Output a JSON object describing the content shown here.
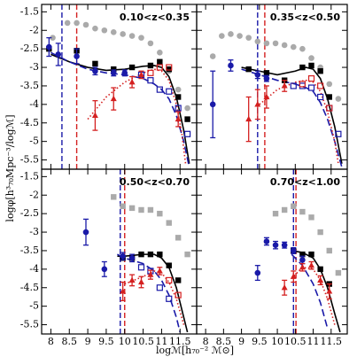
{
  "chart_data": [
    {
      "type": "scatter",
      "annotation": "0.10<z<0.35",
      "ylabel": "logφ[h³₇₀Mpc⁻³/logℳ]",
      "xlabel": "logℳ[h₇₀⁻² ℳ⊙]",
      "xlim": [
        7.75,
        11.95
      ],
      "ylim": [
        -5.75,
        -1.3
      ],
      "xticks": [
        8,
        8.5,
        9,
        9.5,
        10,
        10.5,
        11,
        11.5
      ],
      "yticks": [
        -1.5,
        -2,
        -2.5,
        -3,
        -3.5,
        -4,
        -4.5,
        -5,
        -5.5
      ],
      "series": [
        {
          "color": "#aaaaaa",
          "marker": "circle",
          "x": [
            8.05,
            8.45,
            8.7,
            8.95,
            9.2,
            9.45,
            9.7,
            9.95,
            10.2,
            10.45,
            10.7,
            10.95,
            11.2,
            11.45,
            11.7
          ],
          "values": [
            -2.2,
            -1.8,
            -1.8,
            -1.85,
            -1.95,
            -2.0,
            -2.05,
            -2.1,
            -2.15,
            -2.2,
            -2.35,
            -2.6,
            -3.1,
            -3.6,
            -4.1
          ]
        },
        {
          "color": "#000000",
          "marker": "square",
          "x": [
            7.95,
            8.7,
            9.2,
            9.7,
            10.2,
            10.7,
            10.95,
            11.2,
            11.45,
            11.7
          ],
          "values": [
            -2.5,
            -2.55,
            -2.9,
            -3.05,
            -3.0,
            -2.95,
            -2.85,
            -3.05,
            -3.8,
            -4.4
          ]
        },
        {
          "color": "#1a1aa8",
          "marker": "circle",
          "x": [
            7.95,
            8.2,
            8.7,
            9.2,
            9.7,
            10.0
          ],
          "values": [
            -2.45,
            -2.65,
            -2.7,
            -3.1,
            -3.15,
            -3.15
          ],
          "errors": [
            0.25,
            0.3,
            0.2,
            0.1,
            0.08,
            0.08
          ]
        },
        {
          "color": "#1a1aa8",
          "marker": "open-square",
          "x": [
            10.45,
            10.7,
            10.95,
            11.2,
            11.45,
            11.7
          ],
          "values": [
            -3.2,
            -3.35,
            -3.6,
            -3.65,
            -4.1,
            -4.8
          ]
        },
        {
          "color": "#d42020",
          "marker": "triangle",
          "x": [
            9.2,
            9.7,
            10.2,
            10.45,
            11.45
          ],
          "values": [
            -4.3,
            -3.85,
            -3.4,
            -3.2,
            -4.4
          ],
          "errors": [
            0.4,
            0.3,
            0.15,
            0.1,
            0.2
          ]
        },
        {
          "color": "#d42020",
          "marker": "open-square",
          "x": [
            10.7,
            10.95,
            11.2
          ],
          "values": [
            -3.15,
            -3.0,
            -3.0
          ]
        }
      ],
      "lines": [
        {
          "color": "#000000",
          "dash": "solid",
          "x": [
            8.0,
            8.5,
            9.0,
            9.5,
            10.0,
            10.5,
            10.8,
            11.0,
            11.2,
            11.4,
            11.6,
            11.75
          ],
          "values": [
            -2.65,
            -2.85,
            -3.0,
            -3.08,
            -3.05,
            -2.97,
            -2.95,
            -3.0,
            -3.25,
            -3.8,
            -4.7,
            -5.6
          ]
        },
        {
          "color": "#1a1aa8",
          "dash": "long",
          "x": [
            8.0,
            8.5,
            9.0,
            9.5,
            10.0,
            10.5,
            10.8,
            11.0,
            11.2,
            11.4,
            11.6,
            11.75
          ],
          "values": [
            -2.6,
            -2.85,
            -3.05,
            -3.15,
            -3.2,
            -3.3,
            -3.45,
            -3.6,
            -3.85,
            -4.3,
            -5.0,
            -5.7
          ]
        },
        {
          "color": "#d42020",
          "dash": "dot",
          "x": [
            9.0,
            9.5,
            10.0,
            10.5,
            10.8,
            11.0,
            11.2,
            11.4,
            11.55,
            11.65
          ],
          "values": [
            -4.4,
            -3.8,
            -3.4,
            -3.15,
            -3.05,
            -3.1,
            -3.35,
            -4.0,
            -4.8,
            -5.6
          ]
        }
      ],
      "vlines": [
        {
          "color": "#1a1aa8",
          "x": 8.3
        },
        {
          "color": "#d42020",
          "x": 8.7
        }
      ]
    },
    {
      "type": "scatter",
      "annotation": "0.35<z<0.50",
      "xlim": [
        7.75,
        11.95
      ],
      "ylim": [
        -5.75,
        -1.3
      ],
      "xticks": [
        8,
        8.5,
        9,
        9.5,
        10,
        10.5,
        11,
        11.5
      ],
      "yticks": [
        -1.5,
        -2,
        -2.5,
        -3,
        -3.5,
        -4,
        -4.5,
        -5,
        -5.5
      ],
      "series": [
        {
          "color": "#aaaaaa",
          "marker": "circle",
          "x": [
            8.2,
            8.45,
            8.7,
            8.95,
            9.2,
            9.45,
            9.7,
            9.95,
            10.2,
            10.45,
            10.7,
            10.95,
            11.2,
            11.45,
            11.7
          ],
          "values": [
            -2.7,
            -2.15,
            -2.1,
            -2.15,
            -2.2,
            -2.3,
            -2.35,
            -2.35,
            -2.4,
            -2.45,
            -2.5,
            -2.75,
            -3.0,
            -3.45,
            -3.85
          ]
        },
        {
          "color": "#000000",
          "marker": "square",
          "x": [
            9.2,
            9.7,
            10.2,
            10.7,
            10.95,
            11.2,
            11.45
          ],
          "values": [
            -3.05,
            -3.15,
            -3.35,
            -3.0,
            -2.95,
            -3.1,
            -3.8
          ]
        },
        {
          "color": "#1a1aa8",
          "marker": "circle",
          "x": [
            8.2,
            8.7,
            9.45,
            9.7
          ],
          "values": [
            -4.0,
            -2.95,
            -3.2,
            -3.3
          ],
          "errors": [
            0.9,
            0.15,
            0.1,
            0.08
          ]
        },
        {
          "color": "#1a1aa8",
          "marker": "open-square",
          "x": [
            10.45,
            10.7,
            10.95,
            11.2,
            11.45,
            11.7
          ],
          "values": [
            -3.5,
            -3.5,
            -3.55,
            -3.8,
            -4.1,
            -4.8
          ]
        },
        {
          "color": "#d42020",
          "marker": "triangle",
          "x": [
            9.2,
            9.45,
            9.7,
            10.2
          ],
          "values": [
            -4.4,
            -4.0,
            -3.8,
            -3.5
          ],
          "errors": [
            0.6,
            0.4,
            0.3,
            0.15
          ]
        },
        {
          "color": "#d42020",
          "marker": "open-square",
          "x": [
            10.7,
            10.95,
            11.2,
            11.45
          ],
          "values": [
            -3.45,
            -3.3,
            -3.5,
            -4.1
          ]
        }
      ],
      "lines": [
        {
          "color": "#000000",
          "dash": "solid",
          "x": [
            9.0,
            9.5,
            10.0,
            10.5,
            10.8,
            11.0,
            11.2,
            11.4,
            11.6,
            11.8
          ],
          "values": [
            -3.0,
            -3.1,
            -3.2,
            -3.1,
            -3.0,
            -3.05,
            -3.3,
            -3.85,
            -4.6,
            -5.6
          ]
        },
        {
          "color": "#1a1aa8",
          "dash": "long",
          "x": [
            9.0,
            9.5,
            10.0,
            10.5,
            10.8,
            11.0,
            11.2,
            11.4,
            11.6,
            11.8
          ],
          "values": [
            -3.05,
            -3.2,
            -3.35,
            -3.45,
            -3.55,
            -3.65,
            -3.95,
            -4.4,
            -5.0,
            -5.7
          ]
        },
        {
          "color": "#d42020",
          "dash": "dot",
          "x": [
            9.5,
            10.0,
            10.5,
            10.8,
            11.0,
            11.2,
            11.4,
            11.6,
            11.7
          ],
          "values": [
            -4.0,
            -3.6,
            -3.4,
            -3.35,
            -3.4,
            -3.65,
            -4.2,
            -5.0,
            -5.6
          ]
        }
      ],
      "vlines": [
        {
          "color": "#1a1aa8",
          "x": 9.45
        },
        {
          "color": "#d42020",
          "x": 9.65
        }
      ]
    },
    {
      "type": "scatter",
      "annotation": "0.50<z<0.70",
      "xlim": [
        7.75,
        11.95
      ],
      "ylim": [
        -5.75,
        -1.3
      ],
      "xticks": [
        8,
        8.5,
        9,
        9.5,
        10,
        10.5,
        11,
        11.5
      ],
      "yticks": [
        -1.5,
        -2,
        -2.5,
        -3,
        -3.5,
        -4,
        -4.5,
        -5,
        -5.5
      ],
      "series": [
        {
          "color": "#aaaaaa",
          "marker": "square",
          "x": [
            9.7,
            9.95,
            10.2,
            10.45,
            10.7,
            10.95,
            11.2,
            11.45,
            11.7
          ],
          "values": [
            -2.05,
            -2.3,
            -2.35,
            -2.4,
            -2.4,
            -2.5,
            -2.75,
            -3.15,
            -3.6
          ]
        },
        {
          "color": "#000000",
          "marker": "square",
          "x": [
            9.95,
            10.2,
            10.45,
            10.7,
            10.95,
            11.2,
            11.45
          ],
          "values": [
            -3.7,
            -3.7,
            -3.6,
            -3.6,
            -3.6,
            -3.9,
            -4.3
          ]
        },
        {
          "color": "#1a1aa8",
          "marker": "circle",
          "x": [
            8.95,
            9.45,
            9.95,
            10.2
          ],
          "values": [
            -3.0,
            -4.0,
            -3.65,
            -3.7
          ],
          "errors": [
            0.35,
            0.2,
            0.1,
            0.1
          ]
        },
        {
          "color": "#1a1aa8",
          "marker": "open-square",
          "x": [
            10.45,
            10.7,
            10.95,
            11.2
          ],
          "values": [
            -3.95,
            -4.05,
            -4.5,
            -4.8
          ]
        },
        {
          "color": "#d42020",
          "marker": "triangle",
          "x": [
            9.95,
            10.2,
            10.45,
            10.7,
            10.95
          ],
          "values": [
            -4.6,
            -4.3,
            -4.35,
            -4.15,
            -4.05
          ],
          "errors": [
            0.25,
            0.15,
            0.15,
            0.12,
            0.1
          ]
        },
        {
          "color": "#d42020",
          "marker": "open-square",
          "x": [
            11.2,
            11.45
          ],
          "values": [
            -4.3,
            -4.7
          ]
        }
      ],
      "lines": [
        {
          "color": "#000000",
          "dash": "solid",
          "x": [
            9.8,
            10.0,
            10.5,
            10.8,
            11.0,
            11.2,
            11.4,
            11.6,
            11.7
          ],
          "values": [
            -3.65,
            -3.65,
            -3.6,
            -3.6,
            -3.7,
            -3.95,
            -4.5,
            -5.3,
            -5.7
          ]
        },
        {
          "color": "#1a1aa8",
          "dash": "long",
          "x": [
            9.8,
            10.0,
            10.5,
            10.8,
            11.0,
            11.2,
            11.4,
            11.5
          ],
          "values": [
            -3.6,
            -3.7,
            -3.85,
            -4.05,
            -4.3,
            -4.7,
            -5.3,
            -5.7
          ]
        },
        {
          "color": "#d42020",
          "dash": "dot",
          "x": [
            10.0,
            10.5,
            10.8,
            11.0,
            11.2,
            11.4,
            11.6
          ],
          "values": [
            -4.4,
            -4.2,
            -4.05,
            -4.1,
            -4.35,
            -4.8,
            -5.5
          ]
        }
      ],
      "vlines": [
        {
          "color": "#1a1aa8",
          "x": 9.88
        },
        {
          "color": "#d42020",
          "x": 10.0
        }
      ]
    },
    {
      "type": "scatter",
      "annotation": "0.70<z<1.00",
      "xlim": [
        7.75,
        11.95
      ],
      "ylim": [
        -5.75,
        -1.3
      ],
      "xticks": [
        8,
        8.5,
        9,
        9.5,
        10,
        10.5,
        11,
        11.5
      ],
      "yticks": [
        -1.5,
        -2,
        -2.5,
        -3,
        -3.5,
        -4,
        -4.5,
        -5,
        -5.5
      ],
      "series": [
        {
          "color": "#aaaaaa",
          "marker": "square",
          "x": [
            9.95,
            10.2,
            10.45,
            10.7,
            10.95,
            11.2,
            11.45,
            11.7
          ],
          "values": [
            -2.5,
            -2.4,
            -2.3,
            -2.45,
            -2.6,
            -3.0,
            -3.5,
            -4.1
          ]
        },
        {
          "color": "#000000",
          "marker": "square",
          "x": [
            10.45,
            10.7,
            10.95,
            11.2,
            11.45
          ],
          "values": [
            -3.5,
            -3.6,
            -3.6,
            -4.0,
            -4.4
          ]
        },
        {
          "color": "#1a1aa8",
          "marker": "circle",
          "x": [
            9.45,
            9.7,
            9.95,
            10.2,
            10.45,
            10.7
          ],
          "values": [
            -4.1,
            -3.25,
            -3.35,
            -3.35,
            -3.5,
            -3.75
          ],
          "errors": [
            0.2,
            0.1,
            0.1,
            0.08,
            0.08,
            0.1
          ]
        },
        {
          "color": "#d42020",
          "marker": "triangle",
          "x": [
            10.2,
            10.45,
            10.7,
            10.95,
            11.2,
            11.45
          ],
          "values": [
            -4.5,
            -4.2,
            -3.95,
            -3.9,
            -4.3,
            -4.6
          ],
          "errors": [
            0.2,
            0.15,
            0.1,
            0.1,
            0.12,
            0.2
          ]
        }
      ],
      "lines": [
        {
          "color": "#000000",
          "dash": "solid",
          "x": [
            10.4,
            10.7,
            11.0,
            11.2,
            11.4,
            11.6,
            11.75
          ],
          "values": [
            -3.5,
            -3.55,
            -3.7,
            -4.0,
            -4.5,
            -5.2,
            -5.7
          ]
        },
        {
          "color": "#1a1aa8",
          "dash": "long",
          "x": [
            10.4,
            10.7,
            11.0,
            11.2,
            11.4
          ],
          "values": [
            -3.6,
            -3.9,
            -4.4,
            -4.9,
            -5.6
          ]
        },
        {
          "color": "#d42020",
          "dash": "dot",
          "x": [
            10.4,
            10.7,
            11.0,
            11.2,
            11.4,
            11.6
          ],
          "values": [
            -4.25,
            -3.95,
            -4.0,
            -4.3,
            -4.8,
            -5.5
          ]
        }
      ],
      "vlines": [
        {
          "color": "#1a1aa8",
          "x": 10.45
        },
        {
          "color": "#d42020",
          "x": 10.52
        }
      ]
    }
  ]
}
